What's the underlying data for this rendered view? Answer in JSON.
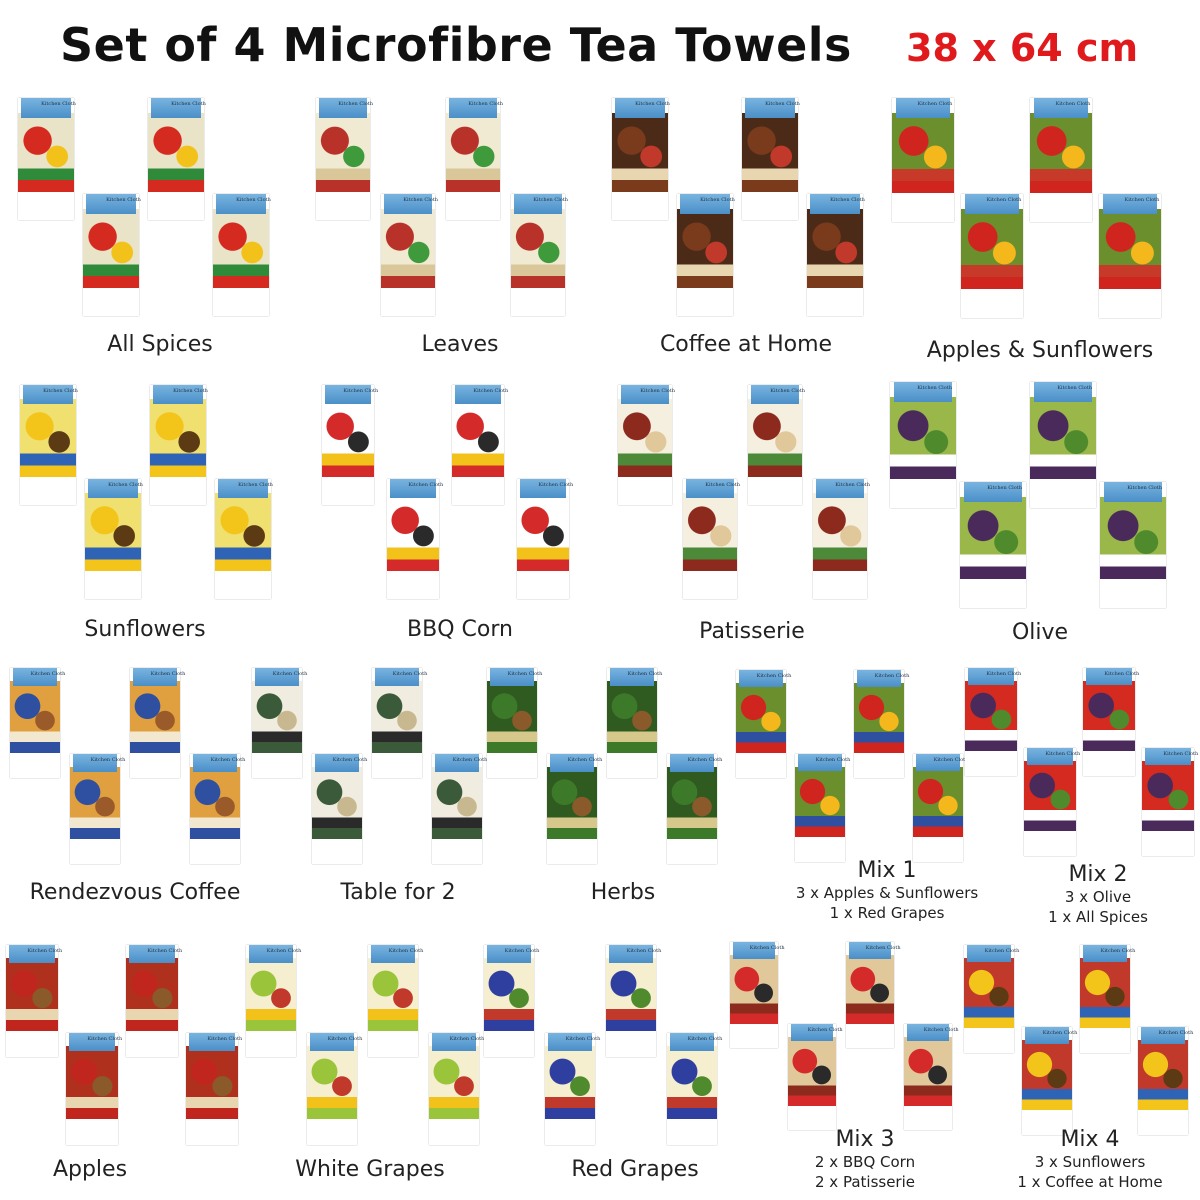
{
  "header": {
    "title": "Set of 4 Microfibre Tea Towels",
    "size": "38 x 64 cm",
    "size_color": "#e0191d"
  },
  "pack_label": "Kitchen Cloth",
  "sets": [
    {
      "name": "All Spices",
      "colors": [
        "#d42a1f",
        "#f2c21b",
        "#2f8a3a",
        "#e9e4c8"
      ]
    },
    {
      "name": "Leaves",
      "colors": [
        "#b8322a",
        "#3f9a3c",
        "#d9c79a",
        "#f1ead2"
      ]
    },
    {
      "name": "Coffee at Home",
      "colors": [
        "#7a3a1c",
        "#c0392b",
        "#e8d6b0",
        "#4b2a18"
      ]
    },
    {
      "name": "Apples & Sunflowers",
      "colors": [
        "#d0241e",
        "#f4b81c",
        "#c73a2a",
        "#6a8f2c"
      ]
    },
    {
      "name": "Sunflowers",
      "colors": [
        "#f3c51a",
        "#5b3a14",
        "#2f63b5",
        "#f0e070"
      ]
    },
    {
      "name": "BBQ Corn",
      "colors": [
        "#d42a2a",
        "#2a2a2a",
        "#f2c21b",
        "#ffffff"
      ]
    },
    {
      "name": "Patisserie",
      "colors": [
        "#8c2a1e",
        "#e0c89a",
        "#4c8a3a",
        "#f5efe0"
      ]
    },
    {
      "name": "Olive",
      "colors": [
        "#4a2a5a",
        "#4f8a2c",
        "#ffffff",
        "#9ab84a"
      ]
    },
    {
      "name": "Rendezvous Coffee",
      "colors": [
        "#2f4fa0",
        "#9a5a2a",
        "#f2e8d0",
        "#e0a040"
      ]
    },
    {
      "name": "Table for 2",
      "colors": [
        "#3a5a3a",
        "#c8b890",
        "#2a2a2a",
        "#f0ece0"
      ]
    },
    {
      "name": "Herbs",
      "colors": [
        "#3c7a2a",
        "#8a5a2a",
        "#d6c88a",
        "#2f5a20"
      ]
    },
    {
      "name": "Mix 1",
      "details": [
        "3 x Apples & Sunflowers",
        "1 x Red Grapes"
      ],
      "colors": [
        "#d0241e",
        "#f4b81c",
        "#2f4fa0",
        "#6a8f2c"
      ]
    },
    {
      "name": "Mix 2",
      "details": [
        "3 x Olive",
        "1 x All Spices"
      ],
      "colors": [
        "#4a2a5a",
        "#4f8a2c",
        "#ffffff",
        "#d42a1f"
      ]
    },
    {
      "name": "Apples",
      "colors": [
        "#c0251e",
        "#8a5a2a",
        "#e8d6b0",
        "#b0301e"
      ]
    },
    {
      "name": "White Grapes",
      "colors": [
        "#9ac43a",
        "#c0392b",
        "#f2c21b",
        "#f5efd0"
      ]
    },
    {
      "name": "Red Grapes",
      "colors": [
        "#2f3fa0",
        "#4f8a2c",
        "#c0392b",
        "#f5efd0"
      ]
    },
    {
      "name": "Mix 3",
      "details": [
        "2 x BBQ Corn",
        "2 x Patisserie"
      ],
      "colors": [
        "#d42a2a",
        "#2a2a2a",
        "#8c2a1e",
        "#e0c89a"
      ]
    },
    {
      "name": "Mix 4",
      "details": [
        "3 x Sunflowers",
        "1 x Coffee at Home"
      ],
      "colors": [
        "#f3c51a",
        "#5b3a14",
        "#2f63b5",
        "#c0392b"
      ]
    }
  ]
}
